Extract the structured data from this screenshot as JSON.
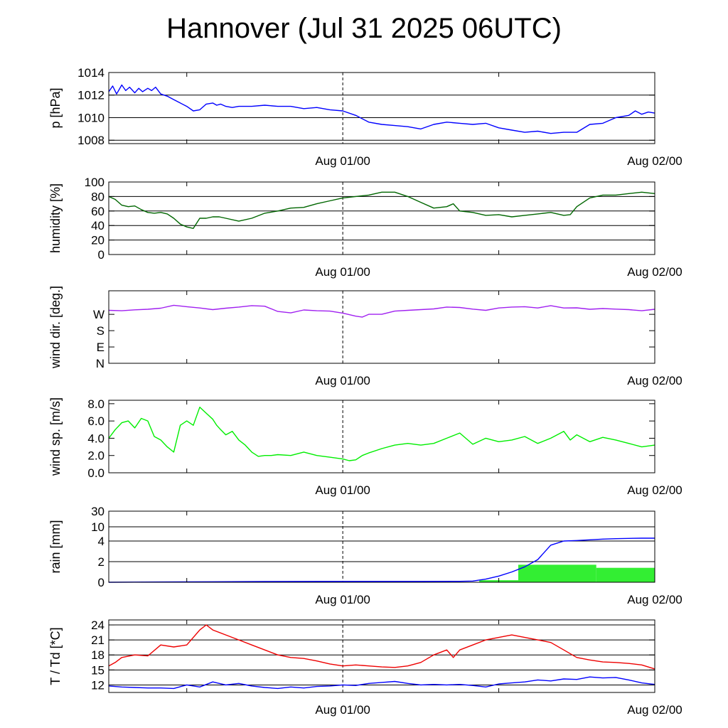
{
  "title": "Hannover (Jul 31 2025 06UTC)",
  "chart_data": [
    {
      "type": "line",
      "ylabel": "p [hPa]",
      "ylim": [
        1007.7,
        1014
      ],
      "yticks": [
        1008,
        1010,
        1012,
        1014
      ],
      "ytick_labels": [
        "1008",
        "1010",
        "1012",
        "1014"
      ],
      "hlines": [
        1008,
        1010,
        1012
      ],
      "xlim": [
        0,
        42
      ],
      "xtick_labels": [
        {
          "x": 18,
          "label": "Aug 01/00"
        },
        {
          "x": 42,
          "label": "Aug 02/00"
        }
      ],
      "series": [
        {
          "color": "#0000ff",
          "x": [
            0,
            0.3,
            0.6,
            1,
            1.3,
            1.6,
            2,
            2.3,
            2.6,
            3,
            3.3,
            3.6,
            4,
            4.5,
            5,
            5.5,
            6,
            6.5,
            7,
            7.5,
            8,
            8.3,
            8.6,
            9,
            9.5,
            10,
            11,
            12,
            13,
            14,
            15,
            16,
            17,
            18,
            19,
            20,
            21,
            22,
            23,
            24,
            25,
            26,
            27,
            28,
            29,
            30,
            31,
            32,
            33,
            34,
            35,
            36,
            37,
            38,
            39,
            40,
            40.5,
            41,
            41.5,
            42
          ],
          "y": [
            1012.3,
            1012.8,
            1012.1,
            1012.9,
            1012.4,
            1012.7,
            1012.2,
            1012.6,
            1012.3,
            1012.6,
            1012.4,
            1012.7,
            1012.1,
            1011.9,
            1011.6,
            1011.3,
            1011.0,
            1010.6,
            1010.7,
            1011.2,
            1011.3,
            1011.1,
            1011.2,
            1011.0,
            1010.9,
            1011.0,
            1011.0,
            1011.1,
            1011.0,
            1011.0,
            1010.8,
            1010.9,
            1010.7,
            1010.6,
            1010.2,
            1009.6,
            1009.4,
            1009.3,
            1009.2,
            1009.0,
            1009.4,
            1009.6,
            1009.5,
            1009.4,
            1009.5,
            1009.1,
            1008.9,
            1008.7,
            1008.8,
            1008.6,
            1008.7,
            1008.7,
            1009.4,
            1009.5,
            1010.0,
            1010.2,
            1010.6,
            1010.3,
            1010.5,
            1010.4
          ]
        }
      ]
    },
    {
      "type": "line",
      "ylabel": "humidity [%]",
      "ylim": [
        0,
        100
      ],
      "yticks": [
        0,
        20,
        40,
        60,
        80,
        100
      ],
      "ytick_labels": [
        "0",
        "20",
        "40",
        "60",
        "80",
        "100"
      ],
      "hlines": [
        20,
        40,
        60,
        80
      ],
      "xlim": [
        0,
        42
      ],
      "xtick_labels": [
        {
          "x": 18,
          "label": "Aug 01/00"
        },
        {
          "x": 42,
          "label": "Aug 02/00"
        }
      ],
      "series": [
        {
          "color": "#006600",
          "x": [
            0,
            0.5,
            1,
            1.5,
            2,
            2.5,
            3,
            3.5,
            4,
            4.5,
            5,
            5.5,
            6,
            6.5,
            7,
            7.5,
            8,
            8.5,
            9,
            10,
            11,
            12,
            13,
            14,
            15,
            16,
            17,
            18,
            19,
            20,
            21,
            22,
            23,
            24,
            25,
            26,
            26.5,
            27,
            28,
            29,
            30,
            31,
            32,
            33,
            34,
            35,
            35.5,
            36,
            37,
            38,
            39,
            40,
            41,
            42
          ],
          "y": [
            80,
            76,
            68,
            66,
            67,
            62,
            58,
            57,
            58,
            56,
            50,
            42,
            38,
            36,
            50,
            50,
            52,
            52,
            50,
            46,
            50,
            57,
            60,
            64,
            65,
            70,
            74,
            78,
            80,
            82,
            86,
            86,
            80,
            72,
            64,
            66,
            70,
            60,
            58,
            54,
            55,
            52,
            54,
            56,
            58,
            54,
            55,
            66,
            78,
            82,
            82,
            84,
            86,
            84
          ]
        }
      ]
    },
    {
      "type": "line",
      "ylabel": "wind dir. [deg.]",
      "ylim": [
        0,
        400
      ],
      "yticks": [
        0,
        90,
        180,
        270
      ],
      "ytick_labels": [
        "N",
        "E",
        "S",
        "W"
      ],
      "hlines": [],
      "xlim": [
        0,
        42
      ],
      "xtick_labels": [
        {
          "x": 18,
          "label": "Aug 01/00"
        },
        {
          "x": 42,
          "label": "Aug 02/00"
        }
      ],
      "series": [
        {
          "color": "#a020f0",
          "x": [
            0,
            1,
            2,
            3,
            4,
            5,
            6,
            7,
            8,
            9,
            10,
            11,
            12,
            13,
            14,
            15,
            16,
            17,
            18,
            19,
            19.5,
            20,
            21,
            22,
            23,
            24,
            25,
            26,
            27,
            28,
            29,
            30,
            31,
            32,
            33,
            34,
            35,
            36,
            37,
            38,
            39,
            40,
            41,
            42
          ],
          "y": [
            292,
            290,
            295,
            298,
            304,
            320,
            312,
            305,
            296,
            304,
            310,
            318,
            315,
            286,
            278,
            294,
            290,
            288,
            277,
            260,
            255,
            270,
            270,
            288,
            292,
            296,
            300,
            310,
            308,
            299,
            292,
            305,
            310,
            312,
            305,
            318,
            305,
            306,
            298,
            302,
            299,
            296,
            290,
            298
          ]
        }
      ]
    },
    {
      "type": "line",
      "ylabel": "wind sp. [m/s]",
      "ylim": [
        0,
        8.4
      ],
      "yticks": [
        0,
        2,
        4,
        6,
        8
      ],
      "ytick_labels": [
        "0.0",
        "2.0",
        "4.0",
        "6.0",
        "8.0"
      ],
      "hlines": [],
      "xlim": [
        0,
        42
      ],
      "xtick_labels": [
        {
          "x": 18,
          "label": "Aug 01/00"
        },
        {
          "x": 42,
          "label": "Aug 02/00"
        }
      ],
      "series": [
        {
          "color": "#00ee00",
          "x": [
            0,
            0.5,
            1,
            1.5,
            2,
            2.5,
            3,
            3.5,
            4,
            4.5,
            5,
            5.5,
            6,
            6.5,
            7,
            7.5,
            8,
            8.3,
            8.6,
            9,
            9.5,
            10,
            10.5,
            11,
            11.5,
            12,
            12.5,
            13,
            14,
            15,
            16,
            17,
            18,
            18.5,
            19,
            19.5,
            20,
            21,
            22,
            23,
            24,
            25,
            26,
            27,
            28,
            29,
            30,
            31,
            32,
            33,
            34,
            35,
            35.5,
            36,
            37,
            38,
            39,
            40,
            41,
            42
          ],
          "y": [
            4.0,
            5.0,
            5.8,
            6.0,
            5.2,
            6.3,
            6.0,
            4.2,
            3.8,
            3.0,
            2.4,
            5.5,
            6.0,
            5.5,
            7.6,
            6.9,
            6.2,
            5.5,
            5.0,
            4.4,
            4.8,
            3.8,
            3.2,
            2.4,
            1.9,
            2.0,
            2.0,
            2.1,
            2.0,
            2.4,
            2.0,
            1.8,
            1.6,
            1.4,
            1.5,
            2.0,
            2.3,
            2.8,
            3.2,
            3.4,
            3.2,
            3.4,
            4.0,
            4.6,
            3.3,
            4.0,
            3.6,
            3.8,
            4.2,
            3.4,
            4.0,
            4.8,
            3.8,
            4.4,
            3.6,
            4.1,
            3.8,
            3.4,
            3.0,
            3.2
          ]
        }
      ]
    },
    {
      "type": "line",
      "ylabel": "rain [mm]",
      "ylim": [
        0,
        30
      ],
      "yticks": [
        0,
        2,
        4,
        10,
        30
      ],
      "ytick_labels": [
        "0",
        "2",
        "4",
        "10",
        "30"
      ],
      "hlines": [
        2,
        4,
        10
      ],
      "scale": "custom-nonlinear",
      "xlim": [
        0,
        42
      ],
      "xtick_labels": [
        {
          "x": 18,
          "label": "Aug 01/00"
        },
        {
          "x": 42,
          "label": "Aug 02/00"
        }
      ],
      "bars": [
        {
          "x0": 28.5,
          "x1": 31.5,
          "value": 0.2
        },
        {
          "x0": 31.5,
          "x1": 37.5,
          "value": 1.7
        },
        {
          "x0": 37.5,
          "x1": 42,
          "value": 1.4
        }
      ],
      "series": [
        {
          "color": "#0000ff",
          "x": [
            0,
            4,
            8,
            12,
            16,
            20,
            24,
            27,
            28,
            29,
            30,
            31,
            32,
            33,
            34,
            35,
            36,
            37,
            38,
            39,
            40,
            41,
            42
          ],
          "y": [
            0,
            0.03,
            0.05,
            0.07,
            0.08,
            0.08,
            0.08,
            0.09,
            0.12,
            0.3,
            0.6,
            1.0,
            1.5,
            2.2,
            3.6,
            4.0,
            4.2,
            4.5,
            4.8,
            5.0,
            5.1,
            5.2,
            5.2
          ]
        }
      ]
    },
    {
      "type": "line",
      "ylabel": "T / Td [*C]",
      "ylim": [
        10.5,
        25
      ],
      "yticks": [
        12,
        15,
        18,
        21,
        24
      ],
      "ytick_labels": [
        "12",
        "15",
        "18",
        "21",
        "24"
      ],
      "hlines": [
        12,
        15,
        18,
        21,
        24
      ],
      "xlim": [
        0,
        42
      ],
      "xtick_labels": [
        {
          "x": 18,
          "label": "Aug 01/00"
        },
        {
          "x": 42,
          "label": "Aug 02/00"
        }
      ],
      "series": [
        {
          "color": "#ee0000",
          "x": [
            0,
            0.5,
            1,
            2,
            3,
            4,
            5,
            6,
            7,
            7.5,
            8,
            9,
            10,
            11,
            12,
            13,
            14,
            15,
            16,
            17,
            18,
            19,
            20,
            21,
            22,
            23,
            24,
            25,
            26,
            26.5,
            27,
            28,
            29,
            30,
            31,
            32,
            33,
            34,
            35,
            36,
            37,
            38,
            39,
            40,
            41,
            42
          ],
          "y": [
            15.8,
            16.5,
            17.5,
            18.0,
            17.8,
            20.0,
            19.6,
            20.0,
            23.0,
            24.0,
            23.0,
            22.0,
            21.0,
            20.0,
            19.0,
            18.0,
            17.5,
            17.3,
            16.8,
            16.2,
            15.8,
            16.0,
            15.8,
            15.6,
            15.5,
            15.8,
            16.5,
            18.0,
            19.0,
            17.5,
            19.0,
            20.0,
            21.0,
            21.5,
            22.0,
            21.5,
            21.0,
            20.5,
            19.0,
            17.5,
            17.0,
            16.6,
            16.5,
            16.3,
            16.0,
            15.2
          ]
        },
        {
          "color": "#0000ff",
          "x": [
            0,
            1,
            2,
            3,
            4,
            5,
            6,
            7,
            8,
            9,
            10,
            11,
            12,
            13,
            14,
            15,
            16,
            17,
            18,
            19,
            20,
            21,
            22,
            23,
            24,
            25,
            26,
            27,
            28,
            29,
            30,
            31,
            32,
            33,
            34,
            35,
            36,
            37,
            38,
            39,
            40,
            41,
            42
          ],
          "y": [
            11.8,
            11.6,
            11.5,
            11.4,
            11.4,
            11.3,
            12.0,
            11.6,
            12.6,
            12.0,
            12.3,
            11.8,
            11.5,
            11.3,
            11.6,
            11.4,
            11.7,
            11.8,
            12.0,
            11.9,
            12.3,
            12.5,
            12.7,
            12.3,
            12.0,
            12.1,
            12.0,
            12.1,
            11.9,
            11.6,
            12.2,
            12.4,
            12.6,
            13.0,
            12.8,
            13.2,
            13.1,
            13.6,
            13.4,
            13.5,
            13.0,
            12.4,
            12.1
          ]
        }
      ]
    }
  ]
}
